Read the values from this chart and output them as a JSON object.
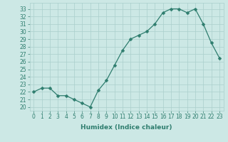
{
  "x": [
    0,
    1,
    2,
    3,
    4,
    5,
    6,
    7,
    8,
    9,
    10,
    11,
    12,
    13,
    14,
    15,
    16,
    17,
    18,
    19,
    20,
    21,
    22,
    23
  ],
  "y": [
    22.0,
    22.5,
    22.5,
    21.5,
    21.5,
    21.0,
    20.5,
    20.0,
    22.2,
    23.5,
    25.5,
    27.5,
    29.0,
    29.5,
    30.0,
    31.0,
    32.5,
    33.0,
    33.0,
    32.5,
    33.0,
    31.0,
    28.5,
    26.5
  ],
  "line_color": "#2e7d6e",
  "marker": "D",
  "marker_size": 2.5,
  "bg_color": "#cce8e5",
  "grid_color": "#aacfcc",
  "xlabel": "Humidex (Indice chaleur)",
  "ylabel_ticks": [
    20,
    21,
    22,
    23,
    24,
    25,
    26,
    27,
    28,
    29,
    30,
    31,
    32,
    33
  ],
  "ylim": [
    19.5,
    33.8
  ],
  "xlim": [
    -0.5,
    23.5
  ],
  "tick_fontsize": 5.5,
  "xlabel_fontsize": 6.5
}
